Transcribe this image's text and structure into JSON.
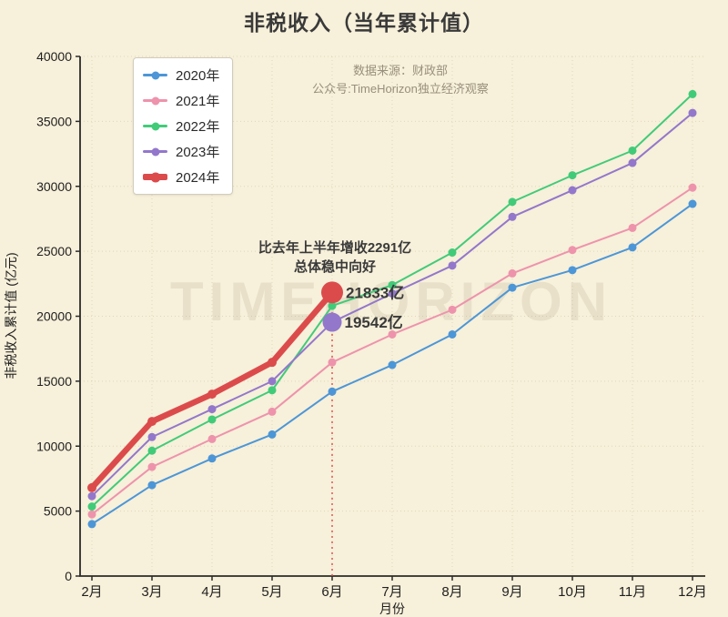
{
  "title": "非税收入（当年累计值）",
  "source": {
    "line1": "数据来源：财政部",
    "line2": "公众号:TimeHorizon独立经济观察"
  },
  "watermark": "TIMEHORIZON",
  "annotations": {
    "note_line1": "比去年上半年增收2291亿",
    "note_line2": "总体稳中向好",
    "value_label_2024": "21833亿",
    "value_label_2023": "19542亿"
  },
  "colors": {
    "background": "#F7F0DA",
    "axis": "#2b2b2b",
    "grid": "rgba(150,130,80,0.22)",
    "title_text": "#3a3a3a",
    "source_text": "#988f7c",
    "annotation_text": "#3a3a3a",
    "watermark_text": "#8a7f5f"
  },
  "chart_data": {
    "type": "line",
    "x": [
      "2月",
      "3月",
      "4月",
      "5月",
      "6月",
      "7月",
      "8月",
      "9月",
      "10月",
      "11月",
      "12月"
    ],
    "xlabel": "月份",
    "ylabel": "非税收入累计值 (亿元)",
    "ylim": [
      0,
      40000
    ],
    "yticks": [
      0,
      5000,
      10000,
      15000,
      20000,
      25000,
      30000,
      35000,
      40000
    ],
    "grid": true,
    "legend_position": "upper-left",
    "series": [
      {
        "name": "2020年",
        "color": "#4C96D7",
        "line_width": 2,
        "values": [
          4000,
          7000,
          9050,
          10900,
          14200,
          16250,
          18600,
          22200,
          23550,
          25300,
          28650
        ]
      },
      {
        "name": "2021年",
        "color": "#EE93AC",
        "line_width": 2,
        "values": [
          4750,
          8400,
          10550,
          12650,
          16450,
          18600,
          20500,
          23300,
          25100,
          26800,
          29900
        ]
      },
      {
        "name": "2022年",
        "color": "#41CB79",
        "line_width": 2,
        "values": [
          5350,
          9650,
          12050,
          14300,
          20800,
          22400,
          24900,
          28800,
          30850,
          32750,
          37100
        ]
      },
      {
        "name": "2023年",
        "color": "#9377CB",
        "line_width": 2,
        "values": [
          6150,
          10700,
          12850,
          15000,
          19542,
          21750,
          23900,
          27650,
          29700,
          31800,
          35650
        ]
      },
      {
        "name": "2024年",
        "color": "#DC4B4C",
        "line_width": 6.5,
        "values": [
          6800,
          11900,
          14000,
          16450,
          21833
        ]
      }
    ],
    "highlight_points": [
      {
        "series": "2024年",
        "x": "6月",
        "value": 21833,
        "label": "21833亿",
        "radius": 12
      },
      {
        "series": "2023年",
        "x": "6月",
        "value": 19542,
        "label": "19542亿",
        "radius": 10.5
      }
    ],
    "reference_line": {
      "x": "6月",
      "to_value": 21833,
      "style": "dotted",
      "color": "#DC4B4C"
    }
  }
}
